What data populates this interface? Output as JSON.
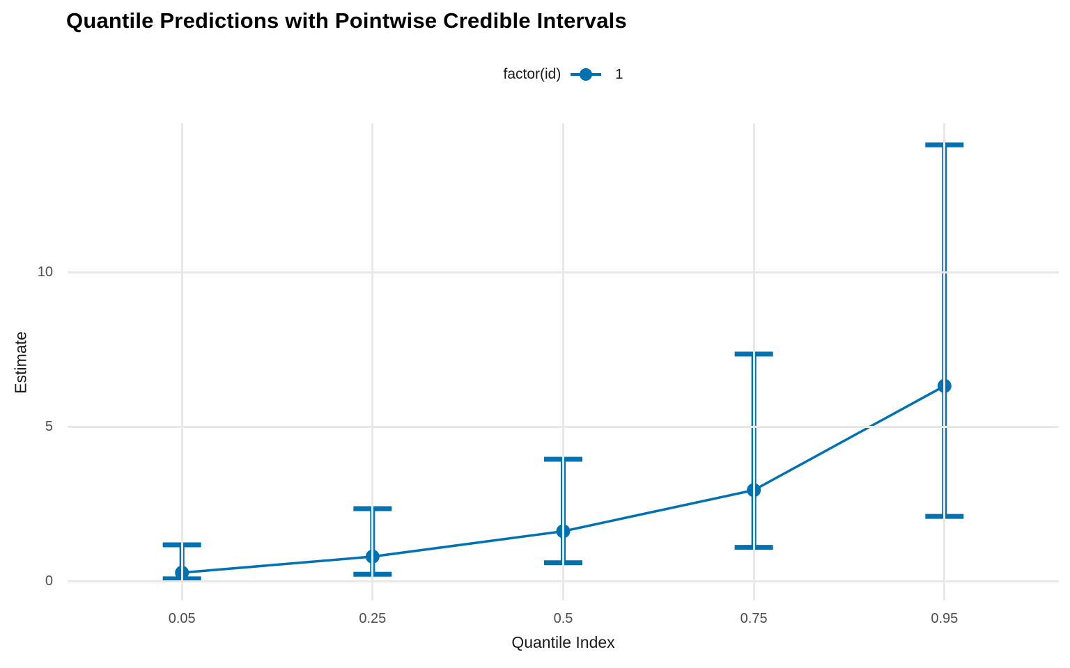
{
  "title": "Quantile Predictions with Pointwise Credible Intervals",
  "legend": {
    "title": "factor(id)",
    "items": [
      {
        "label": "1",
        "color": "#0072B2"
      }
    ]
  },
  "axes": {
    "x_title": "Quantile Index",
    "y_title": "Estimate"
  },
  "chart_data": {
    "type": "pointrange-line",
    "title": "Quantile Predictions with Pointwise Credible Intervals",
    "xlabel": "Quantile Index",
    "ylabel": "Estimate",
    "x_axis_type": "discrete",
    "categories": [
      "0.05",
      "0.25",
      "0.5",
      "0.75",
      "0.95"
    ],
    "series": [
      {
        "name": "1",
        "estimate": [
          0.28,
          0.8,
          1.62,
          2.95,
          6.32
        ],
        "lower": [
          0.08,
          0.23,
          0.6,
          1.1,
          2.1
        ],
        "upper": [
          1.18,
          2.35,
          3.95,
          7.35,
          14.12
        ]
      }
    ],
    "y_ticks": [
      0,
      5,
      10
    ],
    "ylim": [
      -0.62,
      14.82
    ],
    "grid": "major-only",
    "legend_position": "top-center",
    "colors": {
      "series": "#0072B2",
      "grid": "#E8E8E8",
      "tick_label": "#4D4D4D",
      "axis_title": "#1A1A1A",
      "title": "#000000",
      "background": "#FFFFFF"
    }
  }
}
